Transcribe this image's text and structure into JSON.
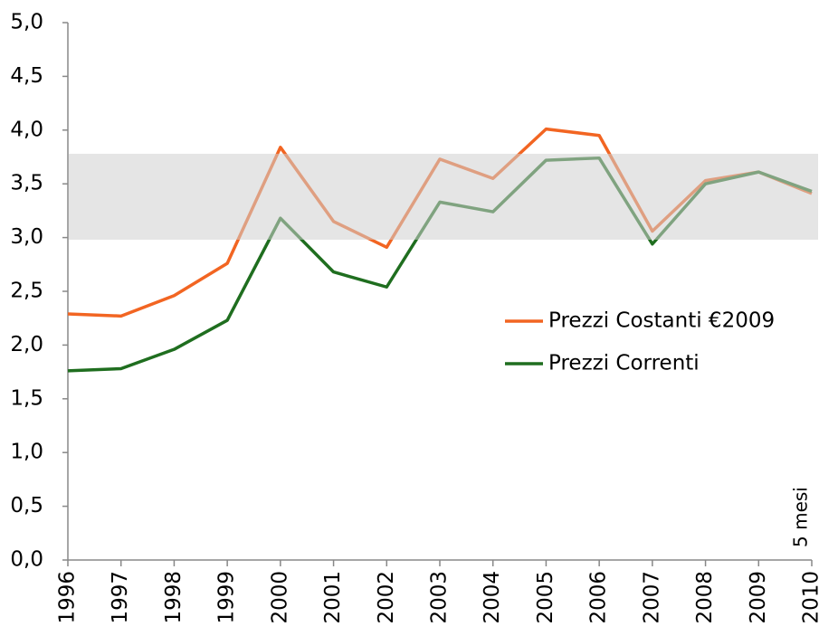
{
  "chart_data": {
    "type": "line",
    "categories": [
      "1996",
      "1997",
      "1998",
      "1999",
      "2000",
      "2001",
      "2002",
      "2003",
      "2004",
      "2005",
      "2006",
      "2007",
      "2008",
      "2009",
      "2010"
    ],
    "series": [
      {
        "name": "Prezzi Costanti €2009",
        "color": "#f26522",
        "values": [
          2.29,
          2.27,
          2.46,
          2.76,
          3.84,
          3.15,
          2.91,
          3.73,
          3.55,
          4.01,
          3.95,
          3.06,
          3.53,
          3.61,
          3.41
        ]
      },
      {
        "name": "Prezzi Correnti",
        "color": "#1f6e1f",
        "values": [
          1.76,
          1.78,
          1.96,
          2.23,
          3.18,
          2.68,
          2.54,
          3.33,
          3.24,
          3.72,
          3.74,
          2.94,
          3.5,
          3.61,
          3.43
        ]
      }
    ],
    "band": [
      2.98,
      3.78
    ],
    "annotation": "5 mesi",
    "ylim": [
      0,
      5
    ],
    "yticks": [
      {
        "value": 0,
        "label": "0,0"
      },
      {
        "value": 0.5,
        "label": "0,5"
      },
      {
        "value": 1,
        "label": "1,0"
      },
      {
        "value": 1.5,
        "label": "1,5"
      },
      {
        "value": 2,
        "label": "2,0"
      },
      {
        "value": 2.5,
        "label": "2,5"
      },
      {
        "value": 3,
        "label": "3,0"
      },
      {
        "value": 3.5,
        "label": "3,5"
      },
      {
        "value": 4,
        "label": "4,0"
      },
      {
        "value": 4.5,
        "label": "4,5"
      },
      {
        "value": 5,
        "label": "5,0"
      }
    ],
    "grid": false,
    "legend": "right"
  }
}
